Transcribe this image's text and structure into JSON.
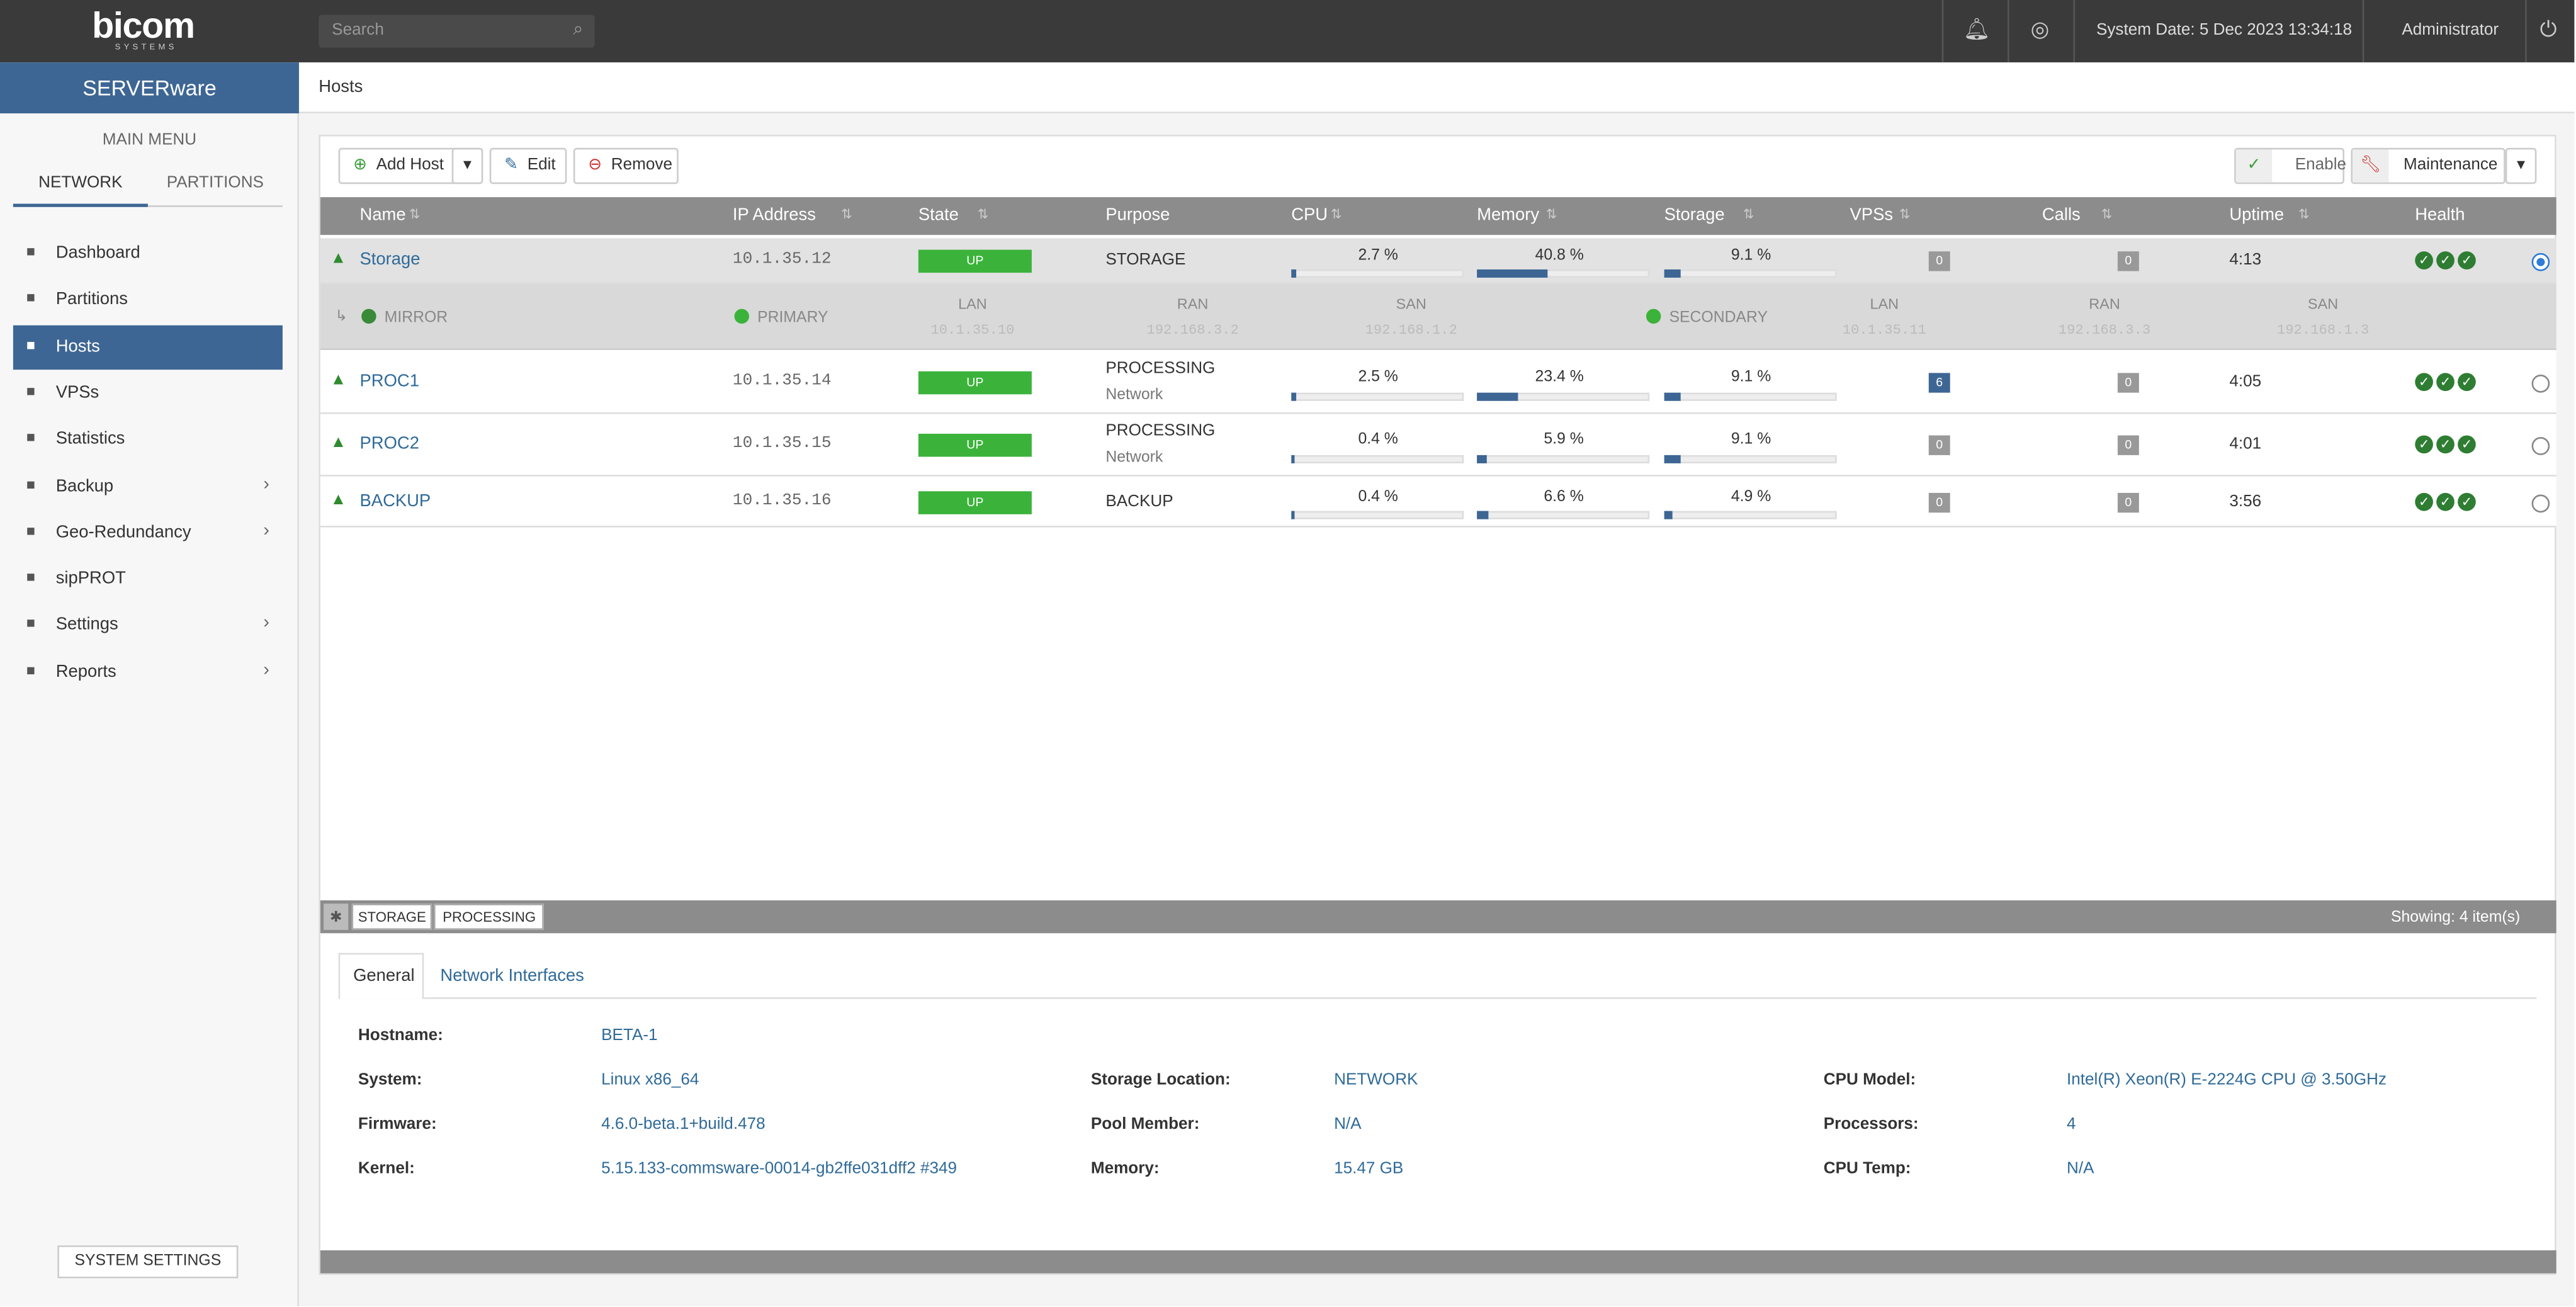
{
  "header": {
    "logo": "bicom",
    "logo_sub": "SYSTEMS",
    "search_placeholder": "Search",
    "system_date": "System Date: 5 Dec 2023 13:34:18",
    "user": "Administrator"
  },
  "sidebar": {
    "brand": "SERVERware",
    "main_menu": "MAIN MENU",
    "tabs": [
      "NETWORK",
      "PARTITIONS"
    ],
    "items": [
      {
        "label": "Dashboard"
      },
      {
        "label": "Partitions"
      },
      {
        "label": "Hosts",
        "active": true
      },
      {
        "label": "VPSs"
      },
      {
        "label": "Statistics"
      },
      {
        "label": "Backup",
        "submenu": true
      },
      {
        "label": "Geo-Redundancy",
        "submenu": true
      },
      {
        "label": "sipPROT"
      },
      {
        "label": "Settings",
        "submenu": true
      },
      {
        "label": "Reports",
        "submenu": true
      }
    ],
    "system_settings": "SYSTEM SETTINGS"
  },
  "breadcrumb": "Hosts",
  "toolbar": {
    "add": "Add Host",
    "edit": "Edit",
    "remove": "Remove",
    "enable": "Enable",
    "maintenance": "Maintenance"
  },
  "table": {
    "columns": [
      "Name",
      "IP Address",
      "State",
      "Purpose",
      "CPU",
      "Memory",
      "Storage",
      "VPSs",
      "Calls",
      "Uptime",
      "Health"
    ],
    "rows": [
      {
        "name": "Storage",
        "ip": "10.1.35.12",
        "state": "UP",
        "purpose": "STORAGE",
        "cpu": {
          "value": 2.7,
          "label": "2.7 %"
        },
        "memory": {
          "value": 40.8,
          "label": "40.8 %"
        },
        "storage": {
          "value": 9.1,
          "label": "9.1 %"
        },
        "vpss": 0,
        "calls": 0,
        "uptime": "4:13",
        "selected": true
      },
      {
        "name": "PROC1",
        "ip": "10.1.35.14",
        "state": "UP",
        "purpose": "PROCESSING",
        "purpose_sub": "Network",
        "cpu": {
          "value": 2.5,
          "label": "2.5 %"
        },
        "memory": {
          "value": 23.4,
          "label": "23.4 %"
        },
        "storage": {
          "value": 9.1,
          "label": "9.1 %"
        },
        "vpss": 6,
        "calls": 0,
        "uptime": "4:05"
      },
      {
        "name": "PROC2",
        "ip": "10.1.35.15",
        "state": "UP",
        "purpose": "PROCESSING",
        "purpose_sub": "Network",
        "cpu": {
          "value": 0.4,
          "label": "0.4 %"
        },
        "memory": {
          "value": 5.9,
          "label": "5.9 %"
        },
        "storage": {
          "value": 9.1,
          "label": "9.1 %"
        },
        "vpss": 0,
        "calls": 0,
        "uptime": "4:01"
      },
      {
        "name": "BACKUP",
        "ip": "10.1.35.16",
        "state": "UP",
        "purpose": "BACKUP",
        "cpu": {
          "value": 0.4,
          "label": "0.4 %"
        },
        "memory": {
          "value": 6.6,
          "label": "6.6 %"
        },
        "storage": {
          "value": 4.9,
          "label": "4.9 %"
        },
        "vpss": 0,
        "calls": 0,
        "uptime": "3:56"
      }
    ],
    "mirror": {
      "label": "MIRROR",
      "primary": {
        "label": "PRIMARY",
        "lan_label": "LAN",
        "lan": "10.1.35.10",
        "ran_label": "RAN",
        "ran": "192.168.3.2",
        "san_label": "SAN",
        "san": "192.168.1.2"
      },
      "secondary": {
        "label": "SECONDARY",
        "lan_label": "LAN",
        "lan": "10.1.35.11",
        "ran_label": "RAN",
        "ran": "192.168.3.3",
        "san_label": "SAN",
        "san": "192.168.1.3"
      }
    },
    "filters": [
      "STORAGE",
      "PROCESSING"
    ],
    "showing": "Showing: 4 item(s)"
  },
  "details": {
    "tabs": [
      "General",
      "Network Interfaces"
    ],
    "fields": [
      [
        {
          "label": "Hostname:",
          "value": "BETA-1"
        },
        {
          "label": "System:",
          "value": "Linux x86_64"
        },
        {
          "label": "Firmware:",
          "value": "4.6.0-beta.1+build.478"
        },
        {
          "label": "Kernel:",
          "value": "5.15.133-commsware-00014-gb2ffe031dff2 #349"
        }
      ],
      [
        {
          "label": "Storage Location:",
          "value": "NETWORK"
        },
        {
          "label": "Pool Member:",
          "value": "N/A"
        },
        {
          "label": "Memory:",
          "value": "15.47 GB"
        }
      ],
      [
        {
          "label": "CPU Model:",
          "value": "Intel(R) Xeon(R) E-2224G CPU @ 3.50GHz"
        },
        {
          "label": "Processors:",
          "value": "4"
        },
        {
          "label": "CPU Temp:",
          "value": "N/A"
        }
      ]
    ]
  }
}
